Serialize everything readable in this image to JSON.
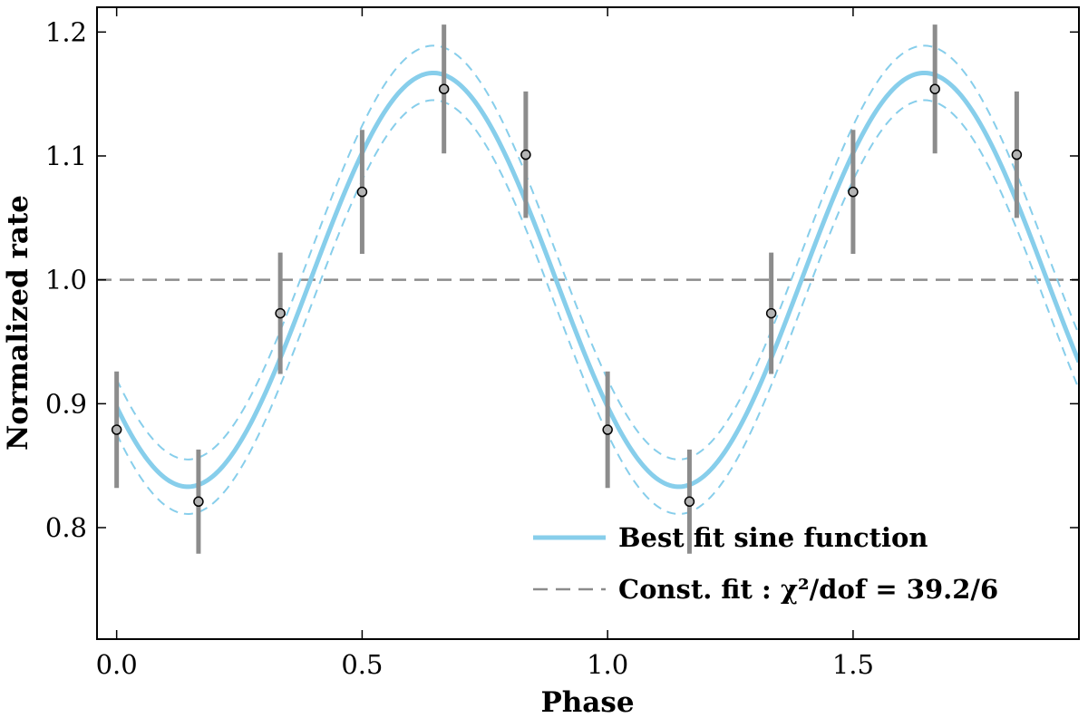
{
  "chart_data": {
    "type": "scatter",
    "xlabel": "Phase",
    "ylabel": "Normalized rate",
    "xlim": [
      -0.04,
      1.96
    ],
    "ylim": [
      0.71,
      1.22
    ],
    "xticks": [
      0.0,
      0.5,
      1.0,
      1.5
    ],
    "xtick_labels": [
      "0.0",
      "0.5",
      "1.0",
      "1.5"
    ],
    "yticks": [
      0.8,
      0.9,
      1.0,
      1.1,
      1.2
    ],
    "ytick_labels": [
      "0.8",
      "0.9",
      "1.0",
      "1.1",
      "1.2"
    ],
    "grid": false,
    "legend_position": "bottom-right",
    "colors": {
      "fit": "#87ceeb",
      "const": "#8c8c8c",
      "errorbar": "#8c8c8c",
      "marker_fill": "#b4b4b4"
    },
    "points": {
      "x": [
        0.0,
        0.1667,
        0.3333,
        0.5,
        0.6667,
        0.8333,
        1.0,
        1.1667,
        1.3333,
        1.5,
        1.6667,
        1.8333
      ],
      "y": [
        0.879,
        0.821,
        0.973,
        1.071,
        1.154,
        1.101,
        0.879,
        0.821,
        0.973,
        1.071,
        1.154,
        1.101
      ],
      "yerr": [
        0.047,
        0.042,
        0.049,
        0.05,
        0.052,
        0.051,
        0.047,
        0.042,
        0.049,
        0.05,
        0.052,
        0.051
      ]
    },
    "sine_fit": {
      "mean": 1.0,
      "amplitude": 0.167,
      "peak_phase": 0.645,
      "period": 1.0,
      "band": 0.022
    },
    "constant_fit": {
      "value": 1.0
    },
    "legend": [
      {
        "label": "Best fit sine function",
        "style": "solid"
      },
      {
        "label_prefix": "Const. fit : ",
        "label_math": "χ²/dof = 39.2/6",
        "style": "dashed"
      }
    ]
  }
}
